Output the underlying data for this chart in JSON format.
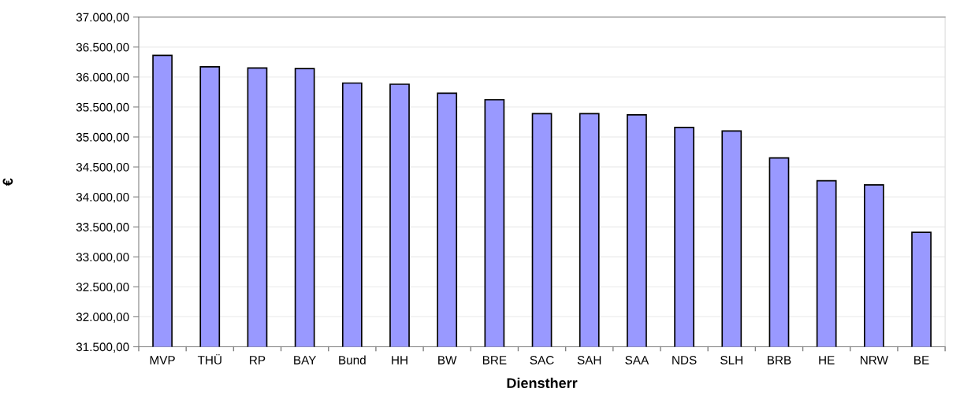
{
  "chart_data": {
    "type": "bar",
    "xlabel": "Dienstherr",
    "ylabel": "€",
    "categories": [
      "MVP",
      "THÜ",
      "RP",
      "BAY",
      "Bund",
      "HH",
      "BW",
      "BRE",
      "SAC",
      "SAH",
      "SAA",
      "NDS",
      "SLH",
      "BRB",
      "HE",
      "NRW",
      "BE"
    ],
    "values": [
      36360,
      36170,
      36150,
      36140,
      35900,
      35880,
      35730,
      35620,
      35390,
      35390,
      35370,
      35160,
      35100,
      34650,
      34270,
      34200,
      33410
    ],
    "color": "#9999ff",
    "ylim": [
      31500,
      37000
    ],
    "yticks": [
      {
        "value": 31500,
        "label": "31.500,00"
      },
      {
        "value": 32000,
        "label": "32.000,00"
      },
      {
        "value": 32500,
        "label": "32.500,00"
      },
      {
        "value": 33000,
        "label": "33.000,00"
      },
      {
        "value": 33500,
        "label": "33.500,00"
      },
      {
        "value": 34000,
        "label": "34.000,00"
      },
      {
        "value": 34500,
        "label": "34.500,00"
      },
      {
        "value": 35000,
        "label": "35.000,00"
      },
      {
        "value": 35500,
        "label": "35.500,00"
      },
      {
        "value": 36000,
        "label": "36.000,00"
      },
      {
        "value": 36500,
        "label": "36.500,00"
      },
      {
        "value": 37000,
        "label": "37.000,00"
      }
    ],
    "grid": "y",
    "legend": false
  }
}
